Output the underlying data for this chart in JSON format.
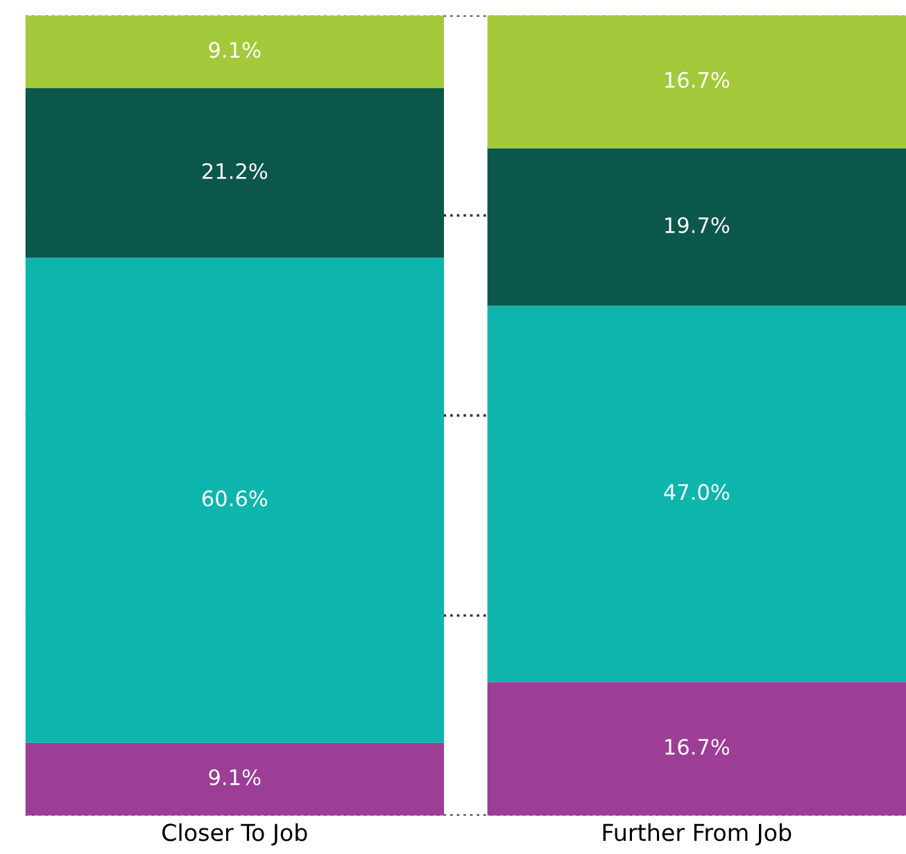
{
  "chart_data": {
    "type": "bar",
    "stacked": true,
    "categories": [
      "Closer To Job",
      "Further From Job"
    ],
    "series": [
      {
        "color": "#9c3d96",
        "values": [
          9.1,
          16.7
        ],
        "value_labels": [
          "9.1%",
          "16.7%"
        ]
      },
      {
        "color": "#0db5ad",
        "values": [
          60.6,
          47.0
        ],
        "value_labels": [
          "60.6%",
          "47.0%"
        ]
      },
      {
        "color": "#0b574b",
        "values": [
          21.2,
          19.7
        ],
        "value_labels": [
          "21.2%",
          "19.7%"
        ]
      },
      {
        "color": "#a3c93a",
        "values": [
          9.1,
          16.7
        ],
        "value_labels": [
          "9.1%",
          "16.7%"
        ]
      }
    ],
    "ylim": [
      0,
      100
    ],
    "yticks": [
      {
        "value": 0,
        "label": null
      },
      {
        "value": 25,
        "label": null
      },
      {
        "value": 50,
        "label": null
      },
      {
        "value": 75,
        "label": null
      },
      {
        "value": 100,
        "label": null
      }
    ],
    "grid": "y",
    "line_style": "dotted",
    "tick_labels": "x",
    "legend": false
  }
}
